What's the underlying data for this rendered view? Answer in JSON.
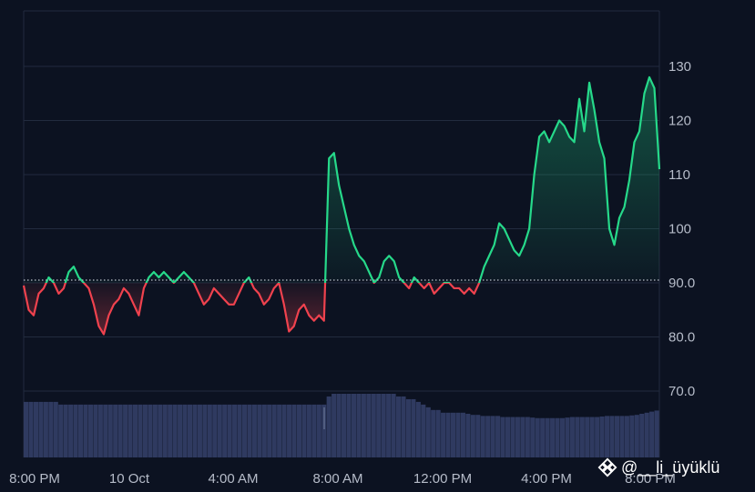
{
  "chart_data": {
    "type": "area",
    "baseline": 90.5,
    "ylim": [
      60,
      140
    ],
    "y_ticks": [
      "70.0",
      "80.0",
      "90.0",
      "100",
      "110",
      "120",
      "130"
    ],
    "x_ticks": [
      "8:00 PM",
      "10 Oct",
      "4:00 AM",
      "8:00 AM",
      "12:00 PM",
      "4:00 PM",
      "8:00 PM"
    ],
    "grid": true,
    "colors": {
      "up": "#26d98a",
      "down": "#f0424e",
      "volume": "#2f3a60",
      "grid": "#222b3e",
      "axis_text": "#b6bcc9",
      "baseline": "#b9bec8"
    },
    "series": [
      {
        "values": [
          89.5,
          85,
          84,
          88,
          89,
          91,
          90,
          88,
          89,
          92,
          93,
          91,
          90,
          89,
          86,
          82,
          80.5,
          84,
          86,
          87,
          89,
          88,
          86,
          84,
          89,
          91,
          92,
          91,
          92,
          91,
          90,
          91,
          92,
          91,
          90,
          88,
          86,
          87,
          89,
          88,
          87,
          86,
          86,
          88,
          90,
          91,
          89,
          88,
          86,
          87,
          89,
          90,
          86,
          81,
          82,
          85,
          86,
          84,
          83,
          84,
          83,
          113,
          114,
          108,
          104,
          100,
          97,
          95,
          94,
          92,
          90,
          91,
          94,
          95,
          94,
          91,
          90,
          89,
          91,
          90,
          89,
          90,
          88,
          89,
          90,
          90,
          89,
          89,
          88,
          89,
          88,
          90,
          93,
          95,
          97,
          101,
          100,
          98,
          96,
          95,
          97,
          100,
          110,
          117,
          118,
          116,
          118,
          120,
          119,
          117,
          116,
          124,
          118,
          127,
          122,
          116,
          113,
          100,
          97,
          102,
          104,
          109,
          116,
          118,
          125,
          128,
          126,
          111
        ]
      }
    ],
    "volume": [
      68,
      68,
      68,
      68,
      68,
      68,
      68,
      67.5,
      67.5,
      67.5,
      67.5,
      67.5,
      67.5,
      67.5,
      67.5,
      67.5,
      67.5,
      67.5,
      67.5,
      67.5,
      67.5,
      67.5,
      67.5,
      67.5,
      67.5,
      67.5,
      67.5,
      67.5,
      67.5,
      67.5,
      67.5,
      67.5,
      67.5,
      67.5,
      67.5,
      67.5,
      67.5,
      67.5,
      67.5,
      67.5,
      67.5,
      67.5,
      67.5,
      67.5,
      67.5,
      67.5,
      67.5,
      67.5,
      67.5,
      67.5,
      67.5,
      67.5,
      67.5,
      67.5,
      67.5,
      67.5,
      67.5,
      67.5,
      67.5,
      67.5,
      67.5,
      69,
      69.5,
      69.5,
      69.5,
      69.5,
      69.5,
      69.5,
      69.5,
      69.5,
      69.5,
      69.5,
      69.5,
      69.5,
      69.5,
      69,
      69,
      68.5,
      68.5,
      68,
      67.5,
      67,
      66.5,
      66.5,
      66,
      66,
      66,
      66,
      66,
      65.8,
      65.6,
      65.6,
      65.4,
      65.4,
      65.4,
      65.4,
      65.2,
      65.2,
      65.2,
      65.2,
      65.2,
      65.2,
      65.1,
      65,
      65,
      65,
      65,
      65,
      65,
      65.1,
      65.2,
      65.2,
      65.2,
      65.2,
      65.2,
      65.2,
      65.3,
      65.4,
      65.4,
      65.4,
      65.4,
      65.4,
      65.5,
      65.6,
      65.8,
      66,
      66.2,
      66.4
    ]
  },
  "watermark": {
    "handle": "@__li_üyüklü",
    "icon": "binance-diamond-icon"
  }
}
